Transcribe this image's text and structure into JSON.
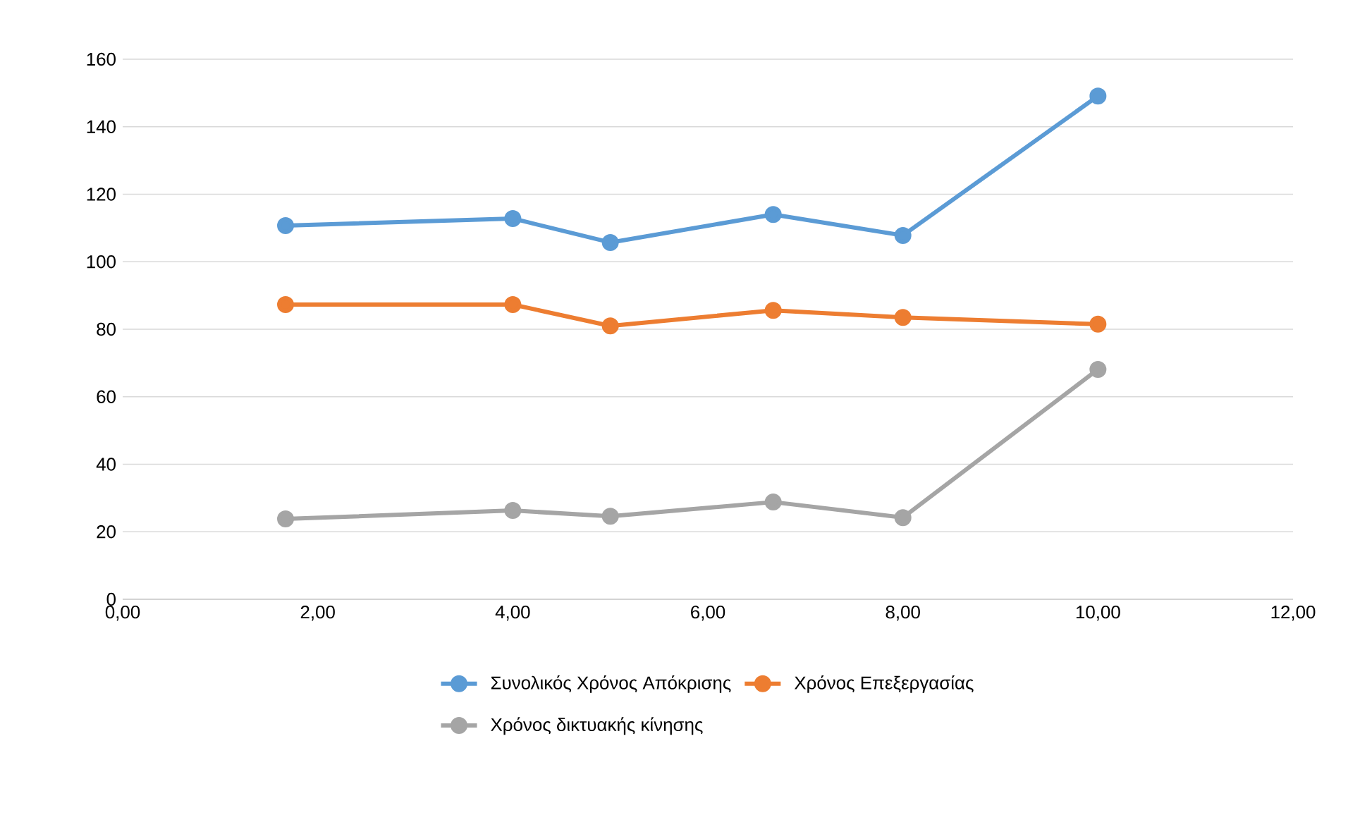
{
  "chart_data": {
    "type": "line",
    "x": [
      1.67,
      4,
      5,
      6.67,
      8,
      10
    ],
    "series": [
      {
        "name": "Συνολικός Χρόνος Απόκρισης",
        "color": "#5b9bd5",
        "values": [
          110.7,
          112.8,
          105.7,
          114.0,
          107.8,
          149.1
        ]
      },
      {
        "name": "Χρόνος Επεξεργασίας",
        "color": "#ed7d31",
        "values": [
          87.3,
          87.3,
          81.0,
          85.6,
          83.5,
          81.5
        ]
      },
      {
        "name": "Χρόνος δικτυακής κίνησης",
        "color": "#a5a5a5",
        "values": [
          23.8,
          26.3,
          24.6,
          28.8,
          24.2,
          68.1
        ]
      }
    ],
    "xlim": [
      0,
      12
    ],
    "ylim": [
      0,
      160
    ],
    "xticks": [
      {
        "value": 0,
        "label": "0,00"
      },
      {
        "value": 2,
        "label": "2,00"
      },
      {
        "value": 4,
        "label": "4,00"
      },
      {
        "value": 6,
        "label": "6,00"
      },
      {
        "value": 8,
        "label": "8,00"
      },
      {
        "value": 10,
        "label": "10,00"
      },
      {
        "value": 12,
        "label": "12,00"
      }
    ],
    "yticks": [
      0,
      20,
      40,
      60,
      80,
      100,
      120,
      140,
      160
    ],
    "grid": "y",
    "legend": "bottom",
    "marker": "circle",
    "line_style": "solid"
  }
}
